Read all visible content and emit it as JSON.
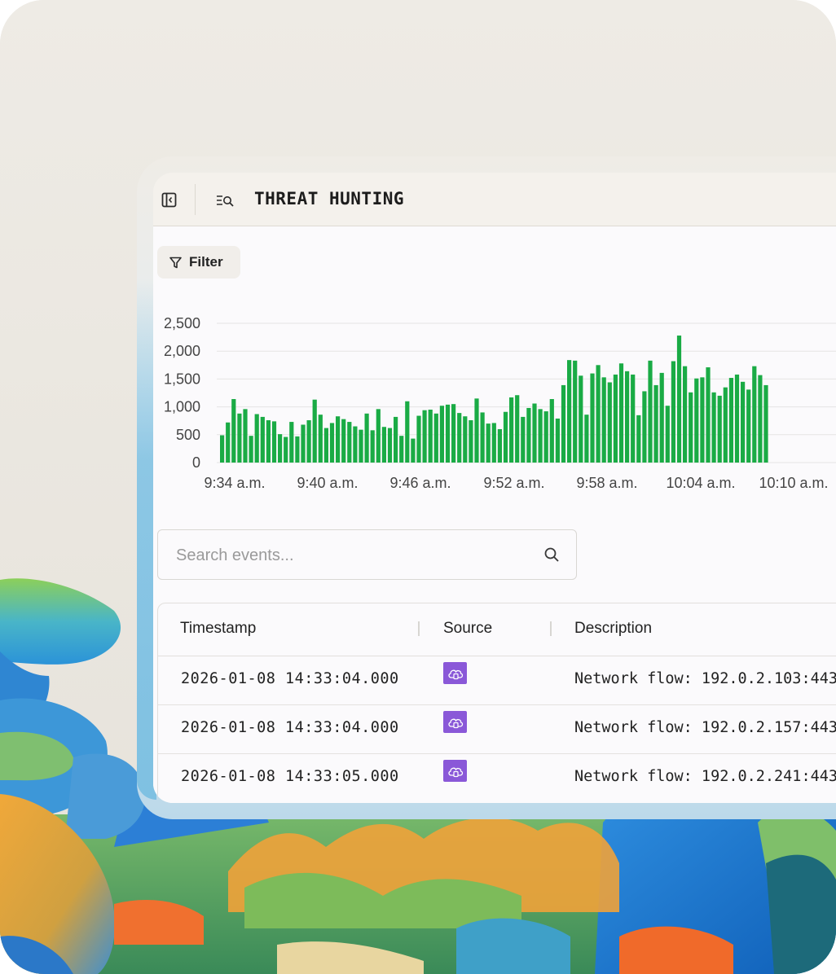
{
  "app": {
    "title": "THREAT HUNTING"
  },
  "toolbar": {
    "filter_label": "Filter"
  },
  "search": {
    "placeholder": "Search events..."
  },
  "table": {
    "columns": [
      "Timestamp",
      "Source",
      "Description"
    ],
    "rows": [
      {
        "timestamp": "2026-01-08 14:33:04.000",
        "source_icon": "cloud-source-icon",
        "description": "Network flow: 192.0.2.103:443"
      },
      {
        "timestamp": "2026-01-08 14:33:04.000",
        "source_icon": "cloud-source-icon",
        "description": "Network flow: 192.0.2.157:443"
      },
      {
        "timestamp": "2026-01-08 14:33:05.000",
        "source_icon": "cloud-source-icon",
        "description": "Network flow: 192.0.2.241:443"
      }
    ]
  },
  "colors": {
    "bar": "#1aab45",
    "source_badge": "#8a58d8",
    "background": "#ebe8e2"
  },
  "chart_data": {
    "type": "bar",
    "ylim": [
      0,
      2500
    ],
    "yticks": [
      "0",
      "500",
      "1,000",
      "1,500",
      "2,000",
      "2,500"
    ],
    "xticks": [
      "9:34 a.m.",
      "9:40 a.m.",
      "9:46 a.m.",
      "9:52 a.m.",
      "9:58 a.m.",
      "10:04 a.m.",
      "10:10 a.m."
    ],
    "grid": true,
    "values": [
      490,
      720,
      1140,
      880,
      960,
      480,
      870,
      820,
      760,
      740,
      510,
      460,
      730,
      470,
      680,
      760,
      1130,
      860,
      620,
      710,
      830,
      780,
      730,
      650,
      590,
      880,
      580,
      960,
      640,
      620,
      820,
      480,
      1100,
      430,
      840,
      940,
      950,
      880,
      1020,
      1040,
      1050,
      890,
      830,
      760,
      1150,
      900,
      700,
      710,
      600,
      910,
      1170,
      1210,
      820,
      980,
      1060,
      960,
      920,
      1140,
      790,
      1390,
      1840,
      1830,
      1560,
      860,
      1600,
      1750,
      1530,
      1440,
      1580,
      1780,
      1640,
      1580,
      850,
      1280,
      1830,
      1390,
      1610,
      1020,
      1820,
      2280,
      1730,
      1260,
      1510,
      1530,
      1710,
      1260,
      1200,
      1350,
      1520,
      1580,
      1450,
      1310,
      1730,
      1570,
      1390
    ]
  }
}
